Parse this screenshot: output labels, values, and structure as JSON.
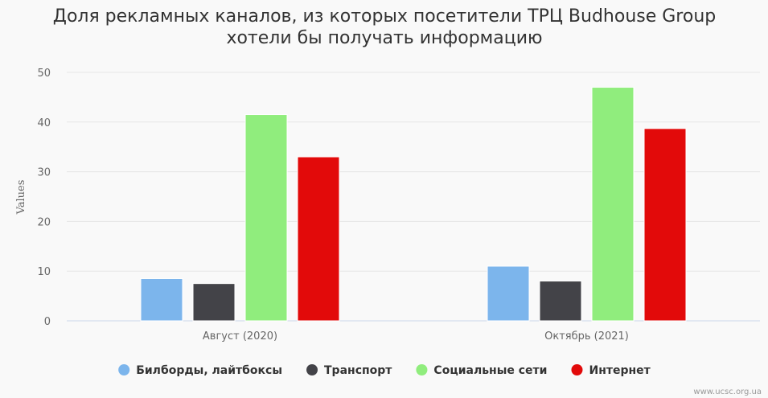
{
  "chart_data": {
    "type": "bar",
    "title_lines": [
      "Доля рекламных каналов, из которых посетители ТРЦ Budhouse Group",
      "хотели бы получать информацию"
    ],
    "ylabel": "Values",
    "xlabel": "",
    "ylim": [
      0,
      50
    ],
    "yticks": [
      0,
      10,
      20,
      30,
      40,
      50
    ],
    "categories": [
      "Август (2020)",
      "Октябрь (2021)"
    ],
    "series": [
      {
        "name": "Билборды, лайтбоксы",
        "color": "#7cb5ec",
        "values": [
          8.5,
          11
        ]
      },
      {
        "name": "Транспорт",
        "color": "#434348",
        "values": [
          7.5,
          8
        ]
      },
      {
        "name": "Социальные сети",
        "color": "#90ed7d",
        "values": [
          41.5,
          47
        ]
      },
      {
        "name": "Интернет",
        "color": "#e20a0a",
        "values": [
          33,
          38.7
        ]
      }
    ],
    "grid": true,
    "legend_position": "bottom-center"
  },
  "credit": "www.ucsc.org.ua"
}
